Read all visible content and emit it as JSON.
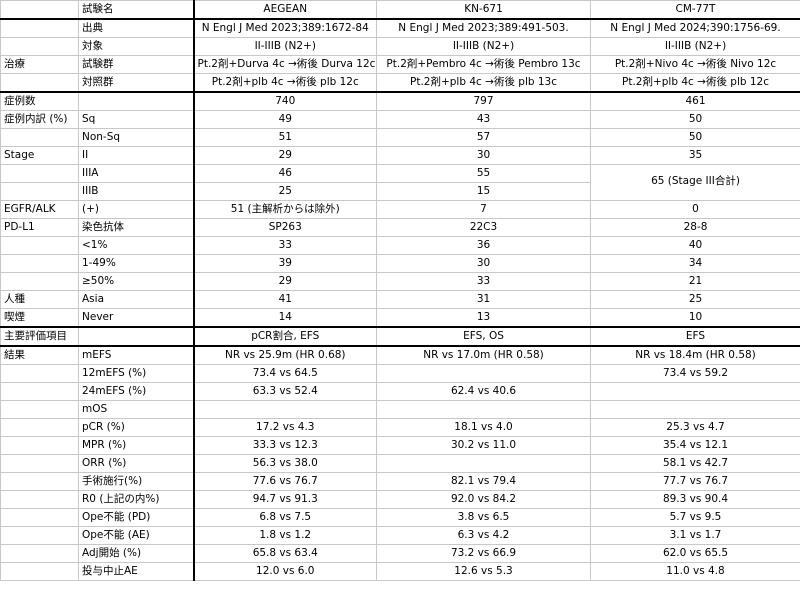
{
  "header": {
    "label": "試験名",
    "trials": [
      "AEGEAN",
      "KN-671",
      "CM-77T"
    ]
  },
  "rows": [
    {
      "cat": "",
      "sub": "出典",
      "vals": [
        "N Engl J Med 2023;389:1672-84",
        "N Engl J Med 2023;389:491-503.",
        "N Engl J Med 2024;390:1756-69."
      ]
    },
    {
      "cat": "",
      "sub": "対象",
      "vals": [
        "II-IIIB (N2+)",
        "II-IIIB (N2+)",
        "II-IIIB (N2+)"
      ]
    },
    {
      "cat": "治療",
      "sub": "試験群",
      "vals": [
        "Pt.2剤+Durva 4c →術後 Durva 12c",
        "Pt.2剤+Pembro 4c →術後 Pembro 13c",
        "Pt.2剤+Nivo 4c →術後 Nivo 12c"
      ]
    },
    {
      "cat": "",
      "sub": "対照群",
      "vals": [
        "Pt.2剤+plb 4c →術後 plb 12c",
        "Pt.2剤+plb 4c →術後 plb 13c",
        "Pt.2剤+plb 4c →術後 plb 12c"
      ]
    },
    {
      "cat": "症例数",
      "sub": "",
      "vals": [
        "740",
        "797",
        "461"
      ]
    },
    {
      "cat": "症例内訳 (%)",
      "sub": "Sq",
      "vals": [
        "49",
        "43",
        "50"
      ]
    },
    {
      "cat": "",
      "sub": "Non-Sq",
      "vals": [
        "51",
        "57",
        "50"
      ]
    },
    {
      "cat": "Stage",
      "sub": "II",
      "vals": [
        "29",
        "30",
        "35"
      ]
    },
    {
      "cat": "",
      "sub": "IIIA",
      "vals": [
        "46",
        "55",
        "65 (Stage III合計)"
      ]
    },
    {
      "cat": "",
      "sub": "IIIB",
      "vals": [
        "25",
        "15",
        ""
      ]
    },
    {
      "cat": "EGFR/ALK",
      "sub": "(+)",
      "vals": [
        "51 (主解析からは除外)",
        "7",
        "0"
      ]
    },
    {
      "cat": "PD-L1",
      "sub": "染色抗体",
      "vals": [
        "SP263",
        "22C3",
        "28-8"
      ]
    },
    {
      "cat": "",
      "sub": "<1%",
      "vals": [
        "33",
        "36",
        "40"
      ]
    },
    {
      "cat": "",
      "sub": "1-49%",
      "vals": [
        "39",
        "30",
        "34"
      ]
    },
    {
      "cat": "",
      "sub": "≥50%",
      "vals": [
        "29",
        "33",
        "21"
      ]
    },
    {
      "cat": "人種",
      "sub": "Asia",
      "vals": [
        "41",
        "31",
        "25"
      ]
    },
    {
      "cat": "喫煙",
      "sub": "Never",
      "vals": [
        "14",
        "13",
        "10"
      ]
    },
    {
      "cat": "主要評価項目",
      "sub": "",
      "vals": [
        "pCR割合, EFS",
        "EFS, OS",
        "EFS"
      ]
    },
    {
      "cat": "結果",
      "sub": "mEFS",
      "vals": [
        "NR vs 25.9m (HR 0.68)",
        "NR vs 17.0m (HR 0.58)",
        "NR vs 18.4m (HR 0.58)"
      ]
    },
    {
      "cat": "",
      "sub": "12mEFS (%)",
      "vals": [
        "73.4 vs 64.5",
        "",
        "73.4 vs 59.2"
      ]
    },
    {
      "cat": "",
      "sub": "24mEFS (%)",
      "vals": [
        "63.3 vs 52.4",
        "62.4 vs 40.6",
        ""
      ]
    },
    {
      "cat": "",
      "sub": "mOS",
      "vals": [
        "",
        "",
        ""
      ]
    },
    {
      "cat": "",
      "sub": "pCR (%)",
      "vals": [
        "17.2 vs 4.3",
        "18.1 vs 4.0",
        "25.3 vs 4.7"
      ]
    },
    {
      "cat": "",
      "sub": "MPR (%)",
      "vals": [
        "33.3 vs 12.3",
        "30.2 vs 11.0",
        "35.4 vs 12.1"
      ]
    },
    {
      "cat": "",
      "sub": "ORR (%)",
      "vals": [
        "56.3 vs 38.0",
        "",
        "58.1 vs 42.7"
      ]
    },
    {
      "cat": "",
      "sub": "手術施行(%)",
      "vals": [
        "77.6 vs 76.7",
        "82.1 vs 79.4",
        "77.7 vs 76.7"
      ]
    },
    {
      "cat": "",
      "sub": "R0 (上記の内%)",
      "vals": [
        "94.7 vs 91.3",
        "92.0 vs 84.2",
        "89.3 vs 90.4"
      ]
    },
    {
      "cat": "",
      "sub": "Ope不能 (PD)",
      "vals": [
        "6.8 vs 7.5",
        "3.8 vs 6.5",
        "5.7 vs 9.5"
      ]
    },
    {
      "cat": "",
      "sub": "Ope不能 (AE)",
      "vals": [
        "1.8 vs 1.2",
        "6.3 vs 4.2",
        "3.1 vs 1.7"
      ]
    },
    {
      "cat": "",
      "sub": "Adj開始 (%)",
      "vals": [
        "65.8 vs 63.4",
        "73.2 vs 66.9",
        "62.0 vs 65.5"
      ]
    },
    {
      "cat": "",
      "sub": "投与中止AE",
      "vals": [
        "12.0 vs 6.0",
        "12.6 vs 5.3",
        "11.0 vs 4.8"
      ]
    }
  ]
}
